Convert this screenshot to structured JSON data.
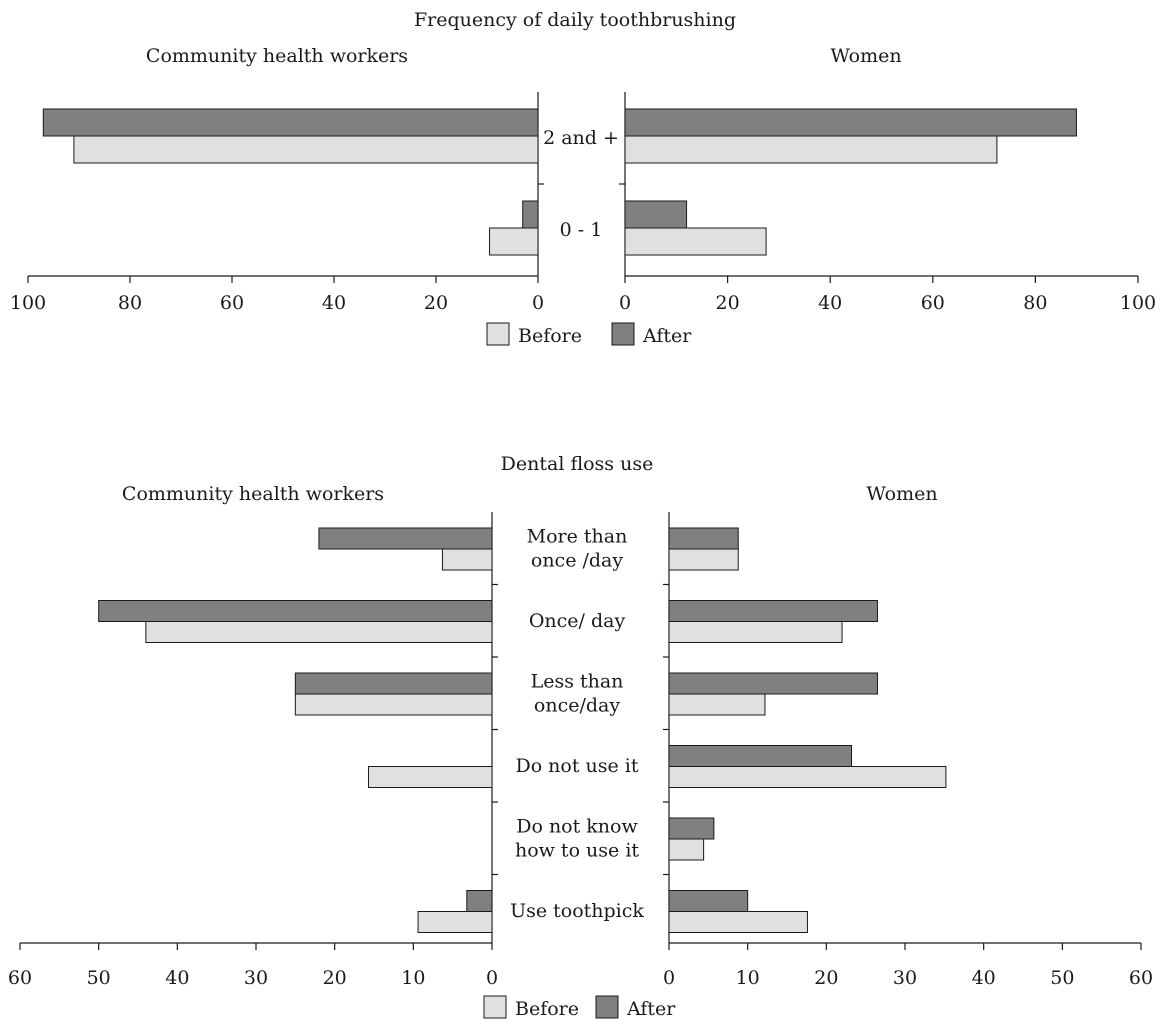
{
  "chart_data": [
    {
      "type": "bar",
      "title": "Frequency of daily toothbrushing",
      "categories": [
        "2 and +",
        "0 - 1"
      ],
      "panels": [
        {
          "title": "Community health workers",
          "direction": "reversed",
          "xlim": [
            0,
            100
          ],
          "ticks": [
            100,
            80,
            60,
            40,
            20,
            0
          ],
          "series": [
            {
              "name": "After",
              "values": [
                97,
                3
              ]
            },
            {
              "name": "Before",
              "values": [
                91,
                9.5
              ]
            }
          ]
        },
        {
          "title": "Women",
          "direction": "normal",
          "xlim": [
            0,
            100
          ],
          "ticks": [
            0,
            20,
            40,
            60,
            80,
            100
          ],
          "series": [
            {
              "name": "After",
              "values": [
                88,
                12
              ]
            },
            {
              "name": "Before",
              "values": [
                72.5,
                27.5
              ]
            }
          ]
        }
      ],
      "legend": [
        "Before",
        "After"
      ],
      "legend_position": "bottom-center",
      "colors": {
        "Before": "#e0e0e0",
        "After": "#808080"
      }
    },
    {
      "type": "bar",
      "title": "Dental floss use",
      "categories": [
        [
          "More than",
          "once /day"
        ],
        [
          "Once/ day"
        ],
        [
          "Less than",
          "once/day"
        ],
        [
          "Do not use it"
        ],
        [
          "Do not know",
          "how to use it"
        ],
        [
          "Use toothpick"
        ]
      ],
      "panels": [
        {
          "title": "Community health workers",
          "direction": "reversed",
          "xlim": [
            0,
            60
          ],
          "ticks": [
            60,
            50,
            40,
            30,
            20,
            10,
            0
          ],
          "series": [
            {
              "name": "After",
              "values": [
                22,
                50,
                25,
                0,
                0,
                3.2
              ]
            },
            {
              "name": "Before",
              "values": [
                6.3,
                44,
                25,
                15.7,
                0,
                9.4
              ]
            }
          ]
        },
        {
          "title": "Women",
          "direction": "normal",
          "xlim": [
            0,
            60
          ],
          "ticks": [
            0,
            10,
            20,
            30,
            40,
            50,
            60
          ],
          "series": [
            {
              "name": "After",
              "values": [
                8.8,
                26.5,
                26.5,
                23.2,
                5.7,
                10
              ]
            },
            {
              "name": "Before",
              "values": [
                8.8,
                22,
                12.2,
                35.2,
                4.4,
                17.6
              ]
            }
          ]
        }
      ],
      "legend": [
        "Before",
        "After"
      ],
      "legend_position": "bottom-center",
      "colors": {
        "Before": "#e0e0e0",
        "After": "#808080"
      }
    }
  ]
}
